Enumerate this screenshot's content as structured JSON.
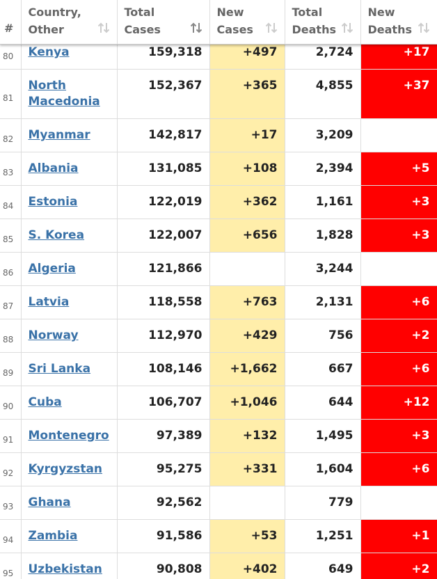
{
  "table": {
    "headers": [
      "#",
      "Country, Other",
      "Total Cases",
      "New Cases",
      "Total Deaths",
      "New Deaths"
    ],
    "rows": [
      [
        "80",
        "Kenya",
        "159,318",
        "+497",
        "2,724",
        "+17"
      ],
      [
        "81",
        "North Macedonia",
        "152,367",
        "+365",
        "4,855",
        "+37"
      ],
      [
        "82",
        "Myanmar",
        "142,817",
        "+17",
        "3,209",
        null
      ],
      [
        "83",
        "Albania",
        "131,085",
        "+108",
        "2,394",
        "+5"
      ],
      [
        "84",
        "Estonia",
        "122,019",
        "+362",
        "1,161",
        "+3"
      ],
      [
        "85",
        "S. Korea",
        "122,007",
        "+656",
        "1,828",
        "+3"
      ],
      [
        "86",
        "Algeria",
        "121,866",
        null,
        "3,244",
        null
      ],
      [
        "87",
        "Latvia",
        "118,558",
        "+763",
        "2,131",
        "+6"
      ],
      [
        "88",
        "Norway",
        "112,970",
        "+429",
        "756",
        "+2"
      ],
      [
        "89",
        "Sri Lanka",
        "108,146",
        "+1,662",
        "667",
        "+6"
      ],
      [
        "90",
        "Cuba",
        "106,707",
        "+1,046",
        "644",
        "+12"
      ],
      [
        "91",
        "Montenegro",
        "97,389",
        "+132",
        "1,495",
        "+3"
      ],
      [
        "92",
        "Kyrgyzstan",
        "95,275",
        "+331",
        "1,604",
        "+6"
      ],
      [
        "93",
        "Ghana",
        "92,562",
        null,
        "779",
        null
      ],
      [
        "94",
        "Zambia",
        "91,586",
        "+53",
        "1,251",
        "+1"
      ],
      [
        "95",
        "Uzbekistan",
        "90,808",
        "+402",
        "649",
        "+2"
      ]
    ]
  }
}
